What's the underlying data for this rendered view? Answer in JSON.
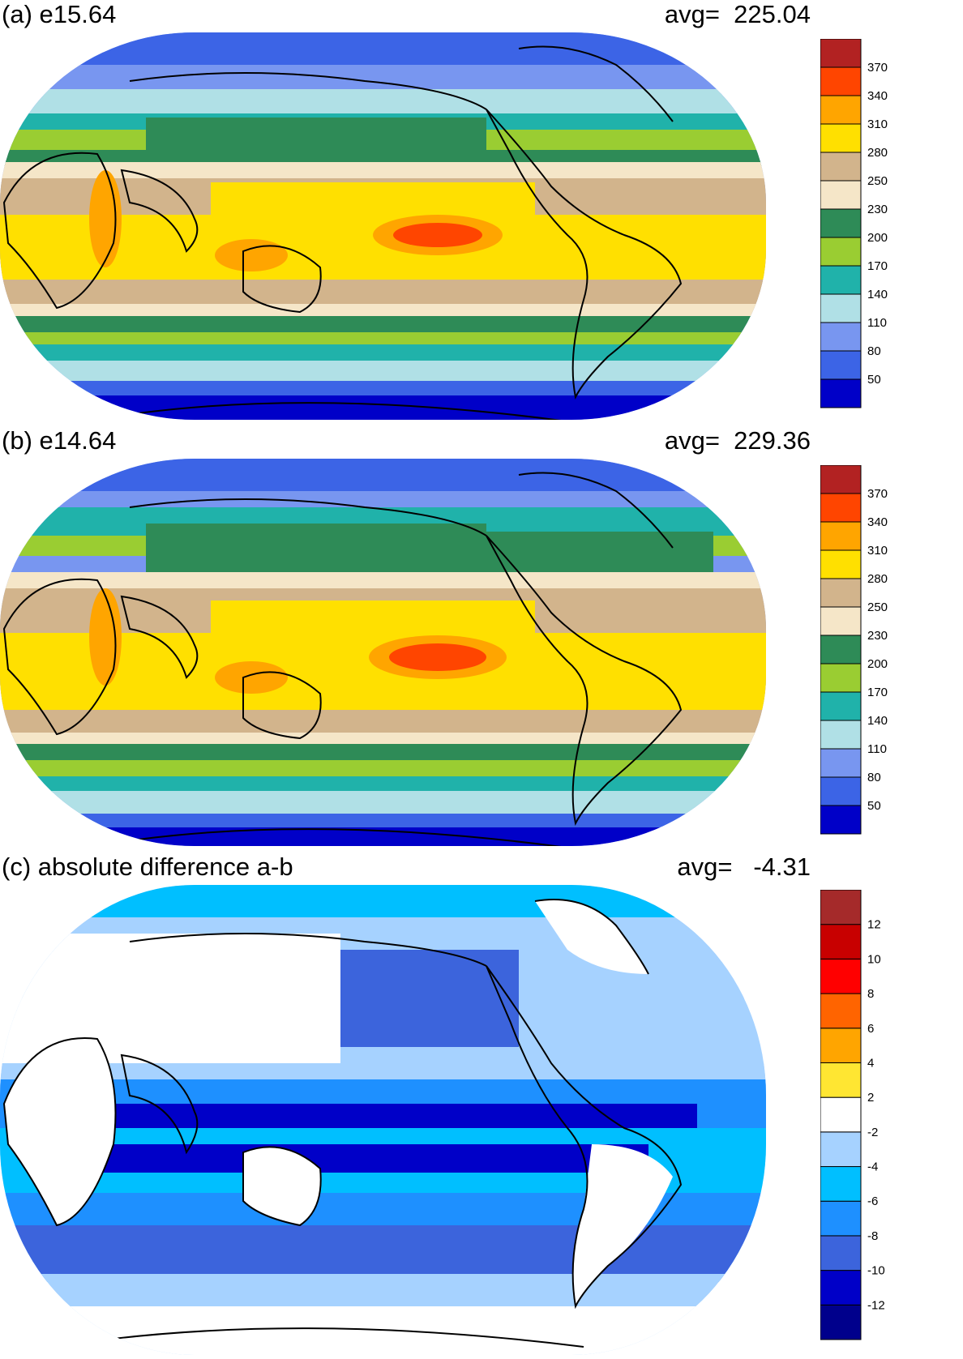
{
  "chart_data": [
    {
      "type": "heatmap",
      "title": "(a) e15.64",
      "avg_text": "avg=  225.04",
      "colorbar": {
        "colors": [
          "#0000c8",
          "#3c64e6",
          "#7896f0",
          "#b0e0e6",
          "#20b2aa",
          "#9acd32",
          "#2e8b57",
          "#f5e6c8",
          "#d2b48c",
          "#ffe000",
          "#ffa500",
          "#ff4500",
          "#b22222"
        ],
        "tick_labels": [
          "50",
          "80",
          "110",
          "140",
          "170",
          "200",
          "230",
          "250",
          "280",
          "310",
          "340",
          "370"
        ]
      }
    },
    {
      "type": "heatmap",
      "title": "(b) e14.64",
      "avg_text": "avg=  229.36",
      "colorbar": {
        "colors": [
          "#0000c8",
          "#3c64e6",
          "#7896f0",
          "#b0e0e6",
          "#20b2aa",
          "#9acd32",
          "#2e8b57",
          "#f5e6c8",
          "#d2b48c",
          "#ffe000",
          "#ffa500",
          "#ff4500",
          "#b22222"
        ],
        "tick_labels": [
          "50",
          "80",
          "110",
          "140",
          "170",
          "200",
          "230",
          "250",
          "280",
          "310",
          "340",
          "370"
        ]
      }
    },
    {
      "type": "heatmap",
      "title": "(c) absolute difference a-b",
      "avg_text": "avg=   -4.31",
      "colorbar": {
        "colors": [
          "#00008c",
          "#0000c8",
          "#3c64dc",
          "#1e90ff",
          "#00bfff",
          "#a6d2ff",
          "#ffffff",
          "#ffe632",
          "#ffa500",
          "#ff6400",
          "#ff0000",
          "#c80000",
          "#a52a2a"
        ],
        "tick_labels": [
          "-12",
          "-10",
          "-8",
          "-6",
          "-4",
          "-2",
          "2",
          "4",
          "6",
          "8",
          "10",
          "12"
        ]
      }
    }
  ]
}
